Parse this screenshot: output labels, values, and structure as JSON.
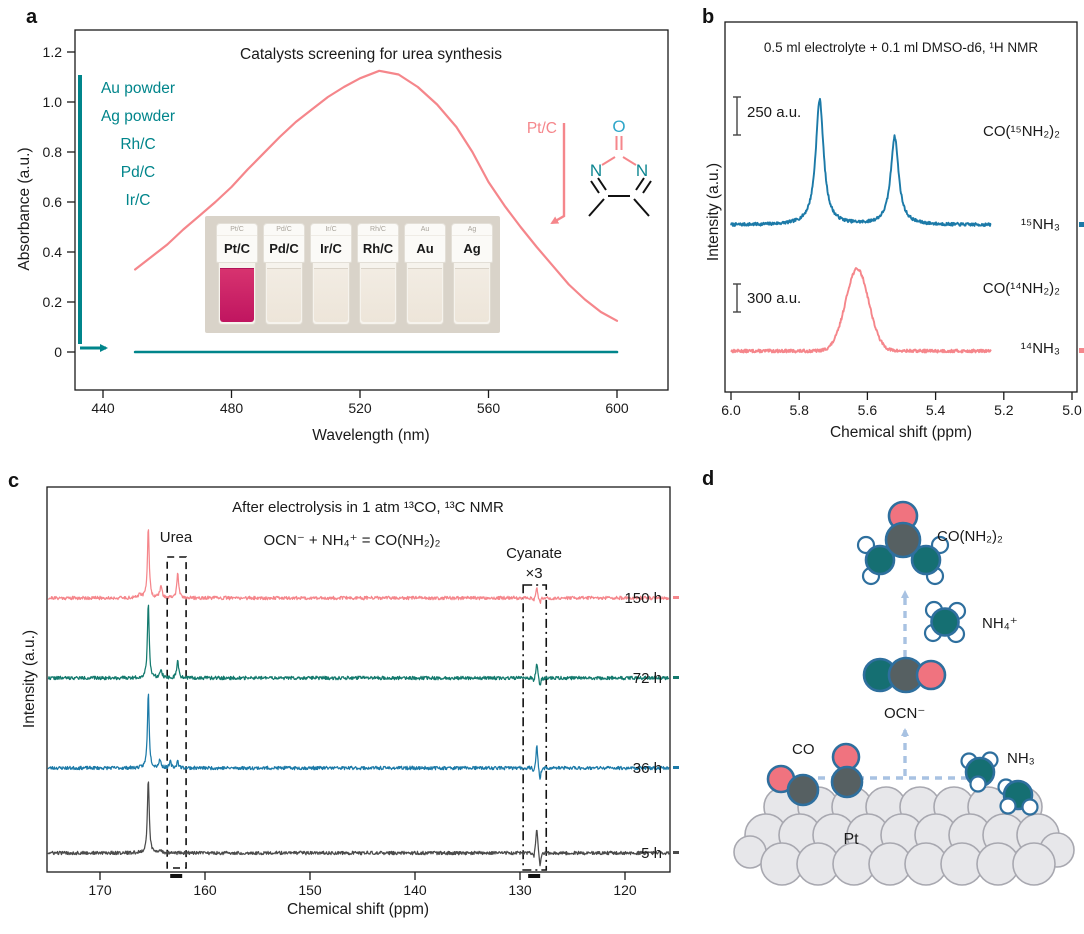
{
  "panels": {
    "a": "a",
    "b": "b",
    "c": "c",
    "d": "d"
  },
  "colors": {
    "pink": "#F5868B",
    "teal_text": "#00858B",
    "teal_trace": "#147A6E",
    "blue_trace": "#1C7AA8",
    "gray_trace": "#4B4B4B",
    "axis": "#1a1a1a",
    "magenta_liquid": "#D4256D",
    "clear_liquid": "#EFE8DD",
    "mol_outline": "#2E6F9E",
    "nitrogen_fill": "#156F72",
    "oxygen_fill": "#F0737F",
    "carbon_fill": "#566062",
    "hydrogen_fill": "#FFFFFF",
    "pt_fill": "#E7E7EA",
    "pt_stroke": "#A8A8B0",
    "arrow_blue": "#A8C2E2"
  },
  "chart_data": [
    {
      "id": "uvvis",
      "type": "line",
      "title": "Catalysts screening for urea synthesis",
      "xlabel": "Wavelength (nm)",
      "ylabel": "Absorbance (a.u.)",
      "xlim": [
        431,
        616
      ],
      "ylim": [
        -0.15,
        1.29
      ],
      "xticks": [
        "440",
        "480",
        "520",
        "560",
        "600"
      ],
      "yticks": [
        "0",
        "0.2",
        "0.4",
        "0.6",
        "0.8",
        "1.0",
        "1.2"
      ],
      "grid": false,
      "series": [
        {
          "name": "Pt/C",
          "color": "#F5868B",
          "points": [
            [
              450,
              0.33
            ],
            [
              455,
              0.38
            ],
            [
              460,
              0.43
            ],
            [
              465,
              0.49
            ],
            [
              470,
              0.545
            ],
            [
              475,
              0.6
            ],
            [
              480,
              0.66
            ],
            [
              485,
              0.73
            ],
            [
              490,
              0.795
            ],
            [
              495,
              0.86
            ],
            [
              500,
              0.92
            ],
            [
              505,
              0.97
            ],
            [
              510,
              1.02
            ],
            [
              515,
              1.06
            ],
            [
              520,
              1.095
            ],
            [
              526,
              1.125
            ],
            [
              532,
              1.11
            ],
            [
              538,
              1.06
            ],
            [
              544,
              0.99
            ],
            [
              550,
              0.9
            ],
            [
              555,
              0.8
            ],
            [
              560,
              0.68
            ],
            [
              565,
              0.585
            ],
            [
              570,
              0.5
            ],
            [
              575,
              0.42
            ],
            [
              580,
              0.345
            ],
            [
              585,
              0.27
            ],
            [
              590,
              0.21
            ],
            [
              595,
              0.16
            ],
            [
              600,
              0.125
            ]
          ]
        },
        {
          "name": "Au powder, Ag powder, Rh/C, Pd/C, Ir/C (zero absorbance)",
          "color": "#00858B",
          "points": [
            [
              450,
              0
            ],
            [
              600,
              0
            ]
          ]
        }
      ],
      "zero_absorbance_catalysts": [
        "Au powder",
        "Ag powder",
        "Rh/C",
        "Pd/C",
        "Ir/C"
      ],
      "curve_label": "Pt/C",
      "inset_vial_labels": [
        "Pt/C",
        "Pd/C",
        "Ir/C",
        "Rh/C",
        "Au",
        "Ag"
      ],
      "molecule": {
        "oxygen_label": "O",
        "nitrogen_label": "N"
      }
    },
    {
      "id": "h1nmr",
      "type": "line",
      "header": "0.5 ml electrolyte + 0.1 ml DMSO-d6, ¹H NMR",
      "xlabel": "Chemical shift (ppm)",
      "ylabel": "Intensity (a.u.)",
      "xlim": [
        6.0,
        5.0
      ],
      "xticks": [
        "6.0",
        "5.8",
        "5.6",
        "5.4",
        "5.2",
        "5.0"
      ],
      "traces": [
        {
          "name": "¹⁵NH₃",
          "species": "CO(¹⁵NH₂)₂",
          "color": "#1C7AA8",
          "kind": "sharp",
          "scalebar": "250 a.u.",
          "peaks": [
            {
              "ppm": 5.74,
              "h": 125,
              "w": 0.014
            },
            {
              "ppm": 5.52,
              "h": 88,
              "w": 0.014
            }
          ]
        },
        {
          "name": "¹⁴NH₃",
          "species": "CO(¹⁴NH₂)₂",
          "color": "#F5868B",
          "kind": "broad",
          "scalebar": "300 a.u.",
          "peaks": [
            {
              "ppm": 5.63,
              "h": 82,
              "w": 0.048
            }
          ]
        }
      ]
    },
    {
      "id": "c13nmr",
      "type": "line",
      "title": "After electrolysis in 1 atm ¹³CO, ¹³C NMR",
      "equation": "OCN⁻ + NH₄⁺ = CO(NH₂)₂",
      "xlabel": "Chemical shift (ppm)",
      "ylabel": "Intensity (a.u.)",
      "xlim": [
        175,
        115.7
      ],
      "xticks": [
        "170",
        "160",
        "150",
        "140",
        "130",
        "120"
      ],
      "traces": [
        {
          "name": "150 h",
          "color": "#F5868B",
          "peaks": [
            {
              "ppm": 166.2,
              "h": 5,
              "w": 0.12
            },
            {
              "ppm": 165.4,
              "h": 71,
              "w": 0.1
            },
            {
              "ppm": 164.2,
              "h": 12,
              "w": 0.12
            },
            {
              "ppm": 162.6,
              "h": 26,
              "w": 0.1
            }
          ],
          "multiplet": {
            "ppm": 128.4,
            "h": 11
          }
        },
        {
          "name": "72 h",
          "color": "#147A6E",
          "peaks": [
            {
              "ppm": 165.4,
              "h": 75,
              "w": 0.1
            },
            {
              "ppm": 164.2,
              "h": 9,
              "w": 0.12
            },
            {
              "ppm": 162.6,
              "h": 18,
              "w": 0.1
            }
          ],
          "multiplet": {
            "ppm": 128.4,
            "h": 16
          }
        },
        {
          "name": "36 h",
          "color": "#1C7AA8",
          "peaks": [
            {
              "ppm": 165.4,
              "h": 75,
              "w": 0.1
            },
            {
              "ppm": 164.3,
              "h": 8,
              "w": 0.12
            },
            {
              "ppm": 163.3,
              "h": 6,
              "w": 0.1
            },
            {
              "ppm": 162.6,
              "h": 7,
              "w": 0.1
            }
          ],
          "multiplet": {
            "ppm": 128.4,
            "h": 24
          }
        },
        {
          "name": "5 h",
          "color": "#4B4B4B",
          "peaks": [
            {
              "ppm": 165.4,
              "h": 75,
              "w": 0.1
            },
            {
              "ppm": 164.2,
              "h": 3,
              "w": 0.12
            }
          ],
          "multiplet": {
            "ppm": 128.4,
            "h": 26
          }
        }
      ],
      "boxes": {
        "urea": {
          "label": "Urea",
          "ppm_range": [
            163.6,
            161.8
          ],
          "style": "dashed"
        },
        "cyanate": {
          "label": "Cyanate",
          "multiplier": "×3",
          "ppm_range": [
            129.7,
            127.5
          ],
          "style": "dash-dot"
        }
      }
    }
  ],
  "panel_d": {
    "labels": {
      "urea": "CO(NH₂)₂",
      "ammonium": "NH₄⁺",
      "cyanate": "OCN⁻",
      "carbon_monoxide": "CO",
      "ammonia": "NH₃",
      "platinum": "Pt"
    }
  }
}
